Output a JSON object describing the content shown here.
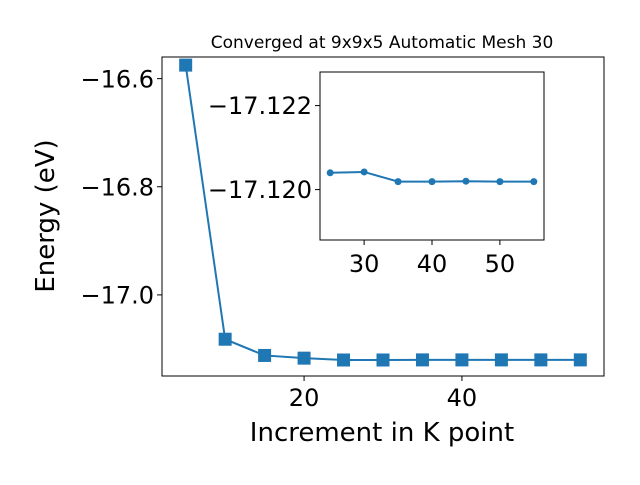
{
  "chart_data": [
    {
      "type": "line",
      "title": "Converged at 9x9x5 Automatic Mesh 30",
      "xlabel": "Increment in K point",
      "ylabel": "Energy (eV)",
      "xlim": [
        2,
        58
      ],
      "ylim": [
        -17.15,
        -16.56
      ],
      "xticks": [
        20,
        40
      ],
      "yticks": [
        -16.6,
        -16.8,
        -17.0
      ],
      "xtick_labels": [
        "20",
        "40"
      ],
      "ytick_labels": [
        "−16.6",
        "−16.8",
        "−17.0"
      ],
      "marker": "square",
      "series": [
        {
          "x": [
            5,
            10,
            15,
            20,
            25,
            30,
            35,
            40,
            45,
            50,
            55
          ],
          "y": [
            -16.575,
            -17.082,
            -17.112,
            -17.117,
            -17.1204,
            -17.1204,
            -17.1202,
            -17.1202,
            -17.1202,
            -17.1202,
            -17.1202
          ]
        }
      ],
      "color": "#1f77b4",
      "grid": false
    },
    {
      "type": "line",
      "title": "",
      "xlabel": "",
      "ylabel": "",
      "xlim": [
        23.5,
        56.5
      ],
      "ylim": [
        -17.1188,
        -17.1228
      ],
      "xticks": [
        30,
        40,
        50
      ],
      "yticks": [
        -17.122,
        -17.12
      ],
      "xtick_labels": [
        "30",
        "40",
        "50"
      ],
      "ytick_labels": [
        "−17.122",
        "−17.120"
      ],
      "marker": "circle",
      "series": [
        {
          "x": [
            25,
            30,
            35,
            40,
            45,
            50,
            55
          ],
          "y": [
            -17.1204,
            -17.12042,
            -17.12019,
            -17.12019,
            -17.1202,
            -17.12019,
            -17.12019
          ]
        }
      ],
      "color": "#1f77b4",
      "grid": false
    }
  ]
}
